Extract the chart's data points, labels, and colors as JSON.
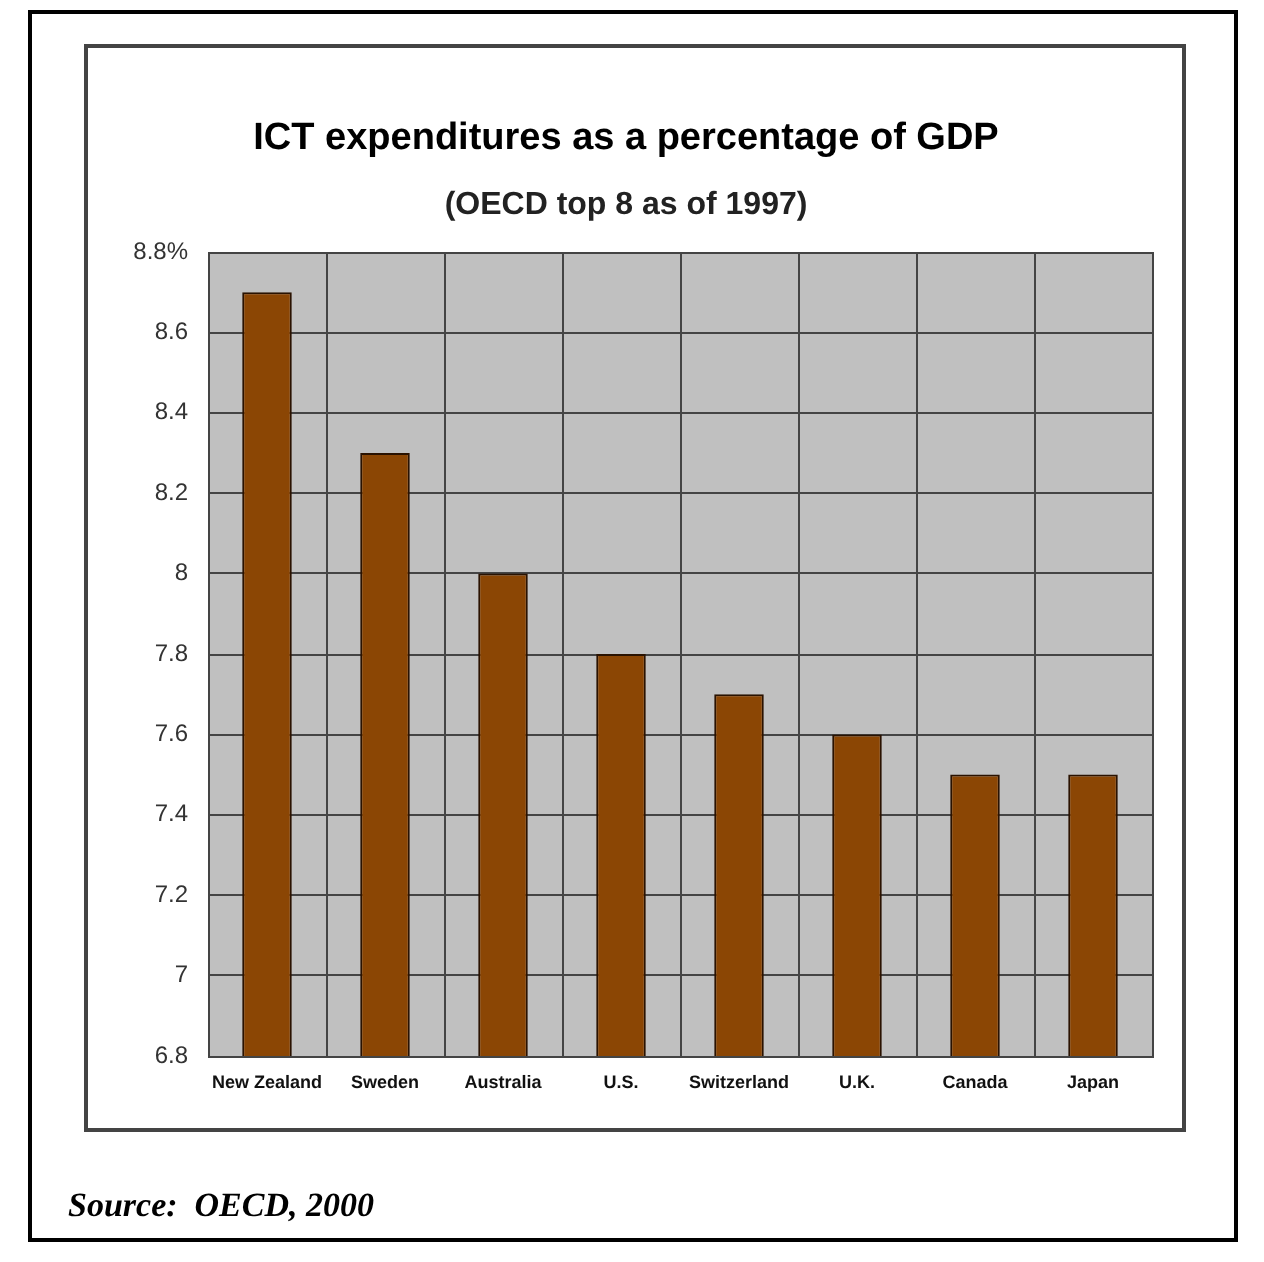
{
  "chart_data": {
    "type": "bar",
    "title": "ICT expenditures as a percentage of GDP",
    "subtitle": "(OECD top 8 as of 1997)",
    "categories": [
      "New Zealand",
      "Sweden",
      "Australia",
      "U.S.",
      "Switzerland",
      "U.K.",
      "Canada",
      "Japan"
    ],
    "values": [
      8.7,
      8.3,
      8.0,
      7.8,
      7.7,
      7.6,
      7.5,
      7.5
    ],
    "color": "#8b4604",
    "ylim": [
      6.8,
      8.8
    ],
    "yticks": [
      6.8,
      7,
      7.2,
      7.4,
      7.6,
      7.8,
      8,
      8.2,
      8.4,
      8.6,
      {
        "value": 8.8,
        "label": "8.8%"
      }
    ],
    "grid": true,
    "annotations": [
      "Source:  OECD, 2000"
    ]
  }
}
